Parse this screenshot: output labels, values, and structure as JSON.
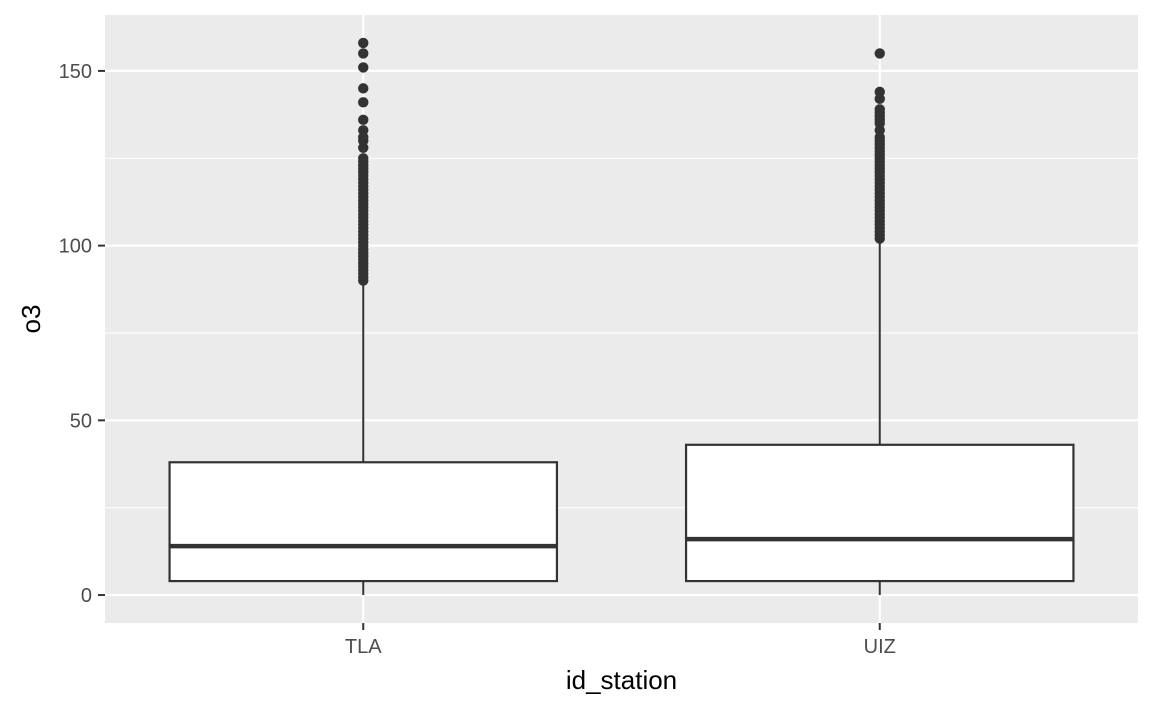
{
  "chart_data": {
    "type": "boxplot",
    "title": "",
    "xlabel": "id_station",
    "ylabel": "o3",
    "categories": [
      "TLA",
      "UIZ"
    ],
    "boxes": [
      {
        "category": "TLA",
        "whisker_low": 0,
        "q1": 4,
        "median": 14,
        "q3": 38,
        "whisker_high": 89,
        "outliers": [
          90,
          91,
          92,
          93,
          94,
          95,
          96,
          97,
          98,
          99,
          100,
          101,
          102,
          103,
          104,
          105,
          106,
          107,
          108,
          109,
          110,
          111,
          112,
          113,
          114,
          115,
          116,
          117,
          118,
          119,
          120,
          121,
          122,
          123,
          124,
          125,
          128,
          130,
          131,
          133,
          136,
          141,
          145,
          151,
          155,
          158
        ]
      },
      {
        "category": "UIZ",
        "whisker_low": 0,
        "q1": 4,
        "median": 16,
        "q3": 43,
        "whisker_high": 101,
        "outliers": [
          102,
          103,
          104,
          105,
          106,
          107,
          108,
          109,
          110,
          111,
          112,
          113,
          114,
          115,
          116,
          117,
          118,
          119,
          120,
          121,
          122,
          123,
          124,
          125,
          126,
          127,
          128,
          129,
          130,
          131,
          133,
          135,
          136,
          137,
          138,
          139,
          142,
          144,
          155
        ]
      }
    ],
    "y_ticks": [
      0,
      50,
      100,
      150
    ],
    "ylim": [
      -8,
      166
    ],
    "grid": true,
    "legend": "none",
    "colors": {
      "panel_background": "#ebebeb",
      "grid_major": "#ffffff",
      "box_fill": "#ffffff",
      "box_stroke": "#333333",
      "outlier": "#333333",
      "tick_mark": "#333333"
    }
  }
}
